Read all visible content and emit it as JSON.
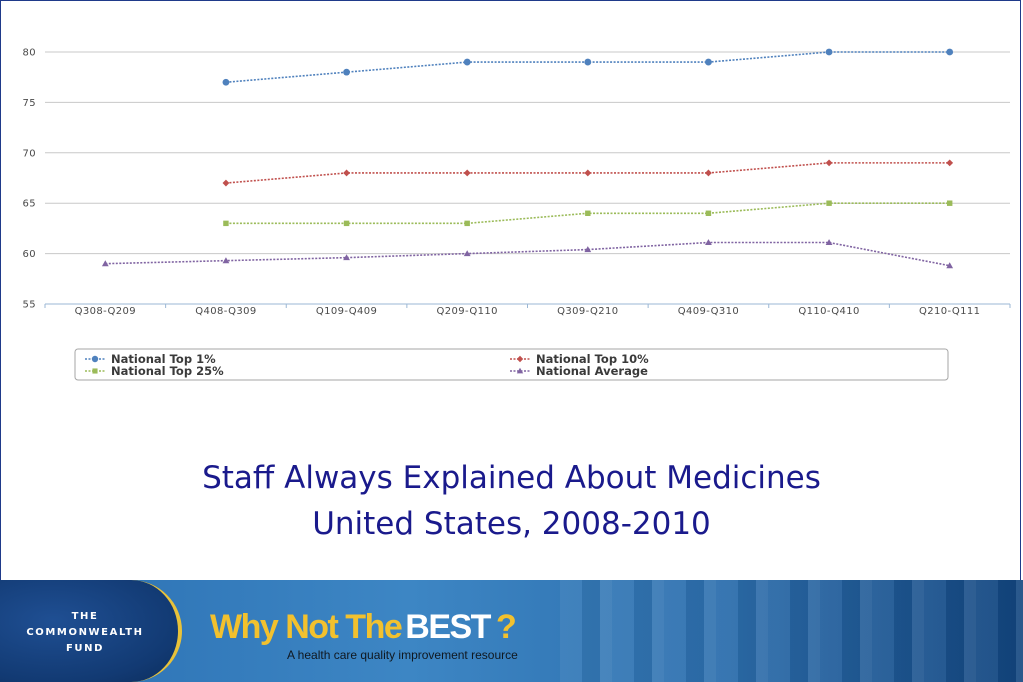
{
  "title": {
    "line1": "Staff Always Explained About Medicines",
    "line2": "United States, 2008-2010"
  },
  "banner": {
    "fund_line1": "THE",
    "fund_line2": "COMMONWEALTH",
    "fund_line3": "FUND",
    "brand_part1": "Why Not The",
    "brand_part2": "BEST",
    "brand_part3": "?",
    "tagline": "A health care quality improvement resource"
  },
  "chart_data": {
    "type": "line",
    "categories": [
      "Q308-Q209",
      "Q408-Q309",
      "Q109-Q409",
      "Q209-Q110",
      "Q309-Q210",
      "Q409-Q310",
      "Q110-Q410",
      "Q210-Q111"
    ],
    "ylim": [
      55,
      80
    ],
    "yticks": [
      55,
      60,
      65,
      70,
      75,
      80
    ],
    "grid": true,
    "legend_position": "bottom",
    "series": [
      {
        "name": "National Top 1%",
        "color": "#4f81bd",
        "marker": "circle",
        "values": [
          null,
          77,
          78,
          79,
          79,
          79,
          80,
          80
        ]
      },
      {
        "name": "National Top 10%",
        "color": "#c0504d",
        "marker": "diamond",
        "values": [
          null,
          67,
          68,
          68,
          68,
          68,
          69,
          69
        ]
      },
      {
        "name": "National Top 25%",
        "color": "#9bbb59",
        "marker": "square",
        "values": [
          null,
          63,
          63,
          63,
          64,
          64,
          65,
          65
        ]
      },
      {
        "name": "National Average",
        "color": "#8064a2",
        "marker": "triangle",
        "values": [
          59,
          59.3,
          59.6,
          60,
          60.4,
          61.1,
          61.1,
          58.8
        ]
      }
    ]
  }
}
